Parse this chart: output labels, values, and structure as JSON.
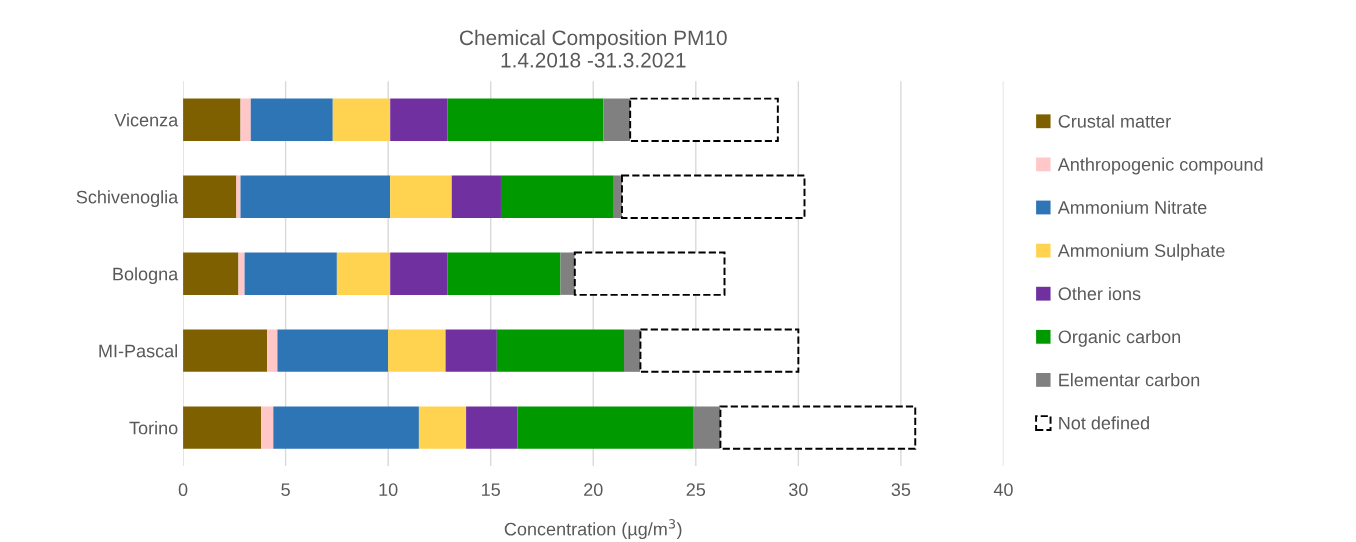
{
  "chart_data": {
    "type": "bar",
    "orientation": "horizontal",
    "stacked": true,
    "title": "Chemical Composition PM10\n1.4.2018 -31.3.2021",
    "xlabel": "Concentration (µg/m$^{3}$)",
    "categories": [
      "Vicenza",
      "Schivenoglia",
      "Bologna",
      "MI-Pascal",
      "Torino"
    ],
    "series": [
      {
        "name": "Crustal matter",
        "color": "#7f6000",
        "values": [
          2.8,
          2.6,
          2.7,
          4.1,
          3.8
        ]
      },
      {
        "name": "Anthropogenic compound",
        "color": "#ffc7c7",
        "values": [
          0.5,
          0.2,
          0.3,
          0.5,
          0.6
        ]
      },
      {
        "name": "Ammonium Nitrate",
        "color": "#2e75b6",
        "values": [
          4.0,
          7.3,
          4.5,
          5.4,
          7.1
        ]
      },
      {
        "name": "Ammonium Sulphate",
        "color": "#ffd34f",
        "values": [
          2.8,
          3.0,
          2.6,
          2.8,
          2.3
        ]
      },
      {
        "name": "Other ions",
        "color": "#7030a0",
        "values": [
          2.8,
          2.4,
          2.8,
          2.5,
          2.5
        ]
      },
      {
        "name": "Organic carbon",
        "color": "#009900",
        "values": [
          7.6,
          5.5,
          5.5,
          6.2,
          8.6
        ]
      },
      {
        "name": "Elementar carbon",
        "color": "#808080",
        "values": [
          1.3,
          0.4,
          0.7,
          0.8,
          1.3
        ]
      },
      {
        "name": "Not defined",
        "color": "#ffffff",
        "line_style": "dashed",
        "values": [
          7.2,
          8.9,
          7.3,
          7.7,
          9.5
        ]
      }
    ],
    "xlim": [
      0,
      40
    ],
    "xticks": [
      0,
      5,
      10,
      15,
      20,
      25,
      30,
      35,
      40
    ],
    "grid": "x",
    "legend": "right"
  }
}
